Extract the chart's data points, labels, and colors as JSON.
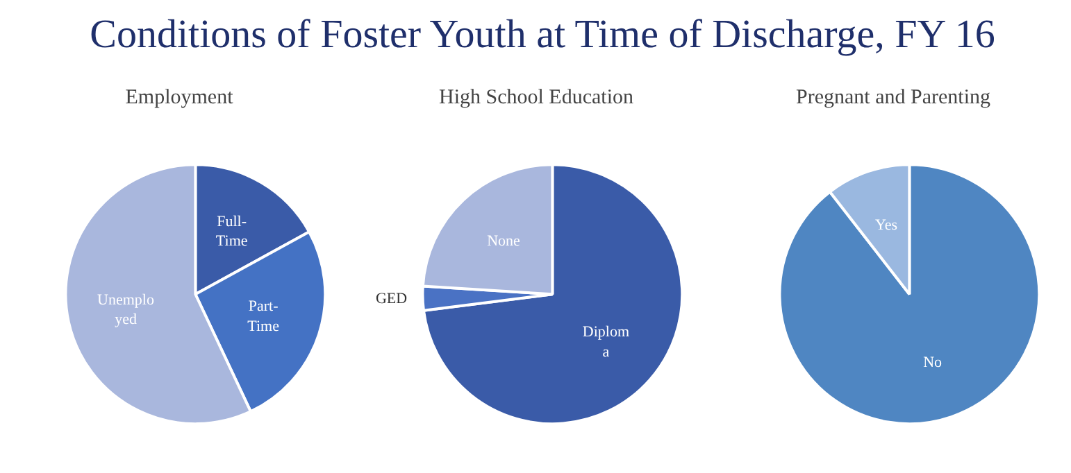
{
  "chart_data": [
    {
      "type": "pie",
      "title": "Conditions of Foster Youth at Time of Discharge, FY 16",
      "subtitle": "Employment",
      "categories": [
        "Full-\nTime",
        "Part-\nTime",
        "Unemplo\nyed"
      ],
      "values": [
        17,
        26,
        57
      ],
      "colors": [
        "#3a5ba8",
        "#4472c4",
        "#a9b7dd"
      ]
    },
    {
      "type": "pie",
      "title": "High School Education",
      "categories": [
        "Diplom\na",
        "GED",
        "None"
      ],
      "values": [
        73,
        3,
        24
      ],
      "colors": [
        "#3a5ba8",
        "#4a72c4",
        "#a9b7dd"
      ]
    },
    {
      "type": "pie",
      "title": "Pregnant and Parenting",
      "categories": [
        "No",
        "Yes"
      ],
      "values": [
        89.5,
        10.5
      ],
      "colors": [
        "#4f86c2",
        "#9ab8e0"
      ]
    }
  ]
}
